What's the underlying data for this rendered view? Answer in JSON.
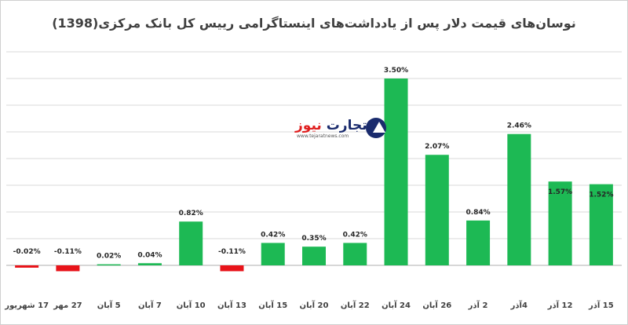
{
  "chart_data": {
    "type": "bar",
    "title": "نوسان‌های قیمت دلار پس از یادداشت‌های اینستاگرامی رییس کل بانک مرکزی(1398)",
    "categories": [
      "17 شهریور",
      "27 مهر",
      "5 آبان",
      "7 آبان",
      "10 آبان",
      "13 آبان",
      "15 آبان",
      "20 آبان",
      "22 آبان",
      "24 آبان",
      "26 آبان",
      "2 آذر",
      "4آذر",
      "12 آذر",
      "15 آذر"
    ],
    "values": [
      -0.02,
      -0.11,
      0.02,
      0.04,
      0.82,
      -0.11,
      0.42,
      0.35,
      0.42,
      3.5,
      2.07,
      0.84,
      2.46,
      1.57,
      1.52
    ],
    "data_labels": [
      "-0.02%",
      "-0.11%",
      "0.02%",
      "0.04%",
      "0.82%",
      "-0.11%",
      "0.42%",
      "0.35%",
      "0.42%",
      "3.50%",
      "2.07%",
      "0.84%",
      "2.46%",
      "1.57%",
      "1.52%"
    ],
    "ylim": [
      -0.5,
      4.0
    ],
    "grid": true,
    "colors": {
      "positive": "#1DB954",
      "negative": "#E8141A",
      "grid": "#d9d9d9",
      "axis": "#bfbfbf"
    }
  },
  "logo": {
    "name_part1": "تجارت",
    "name_part2": "نیوز",
    "url": "www.tejaratnews.com"
  }
}
